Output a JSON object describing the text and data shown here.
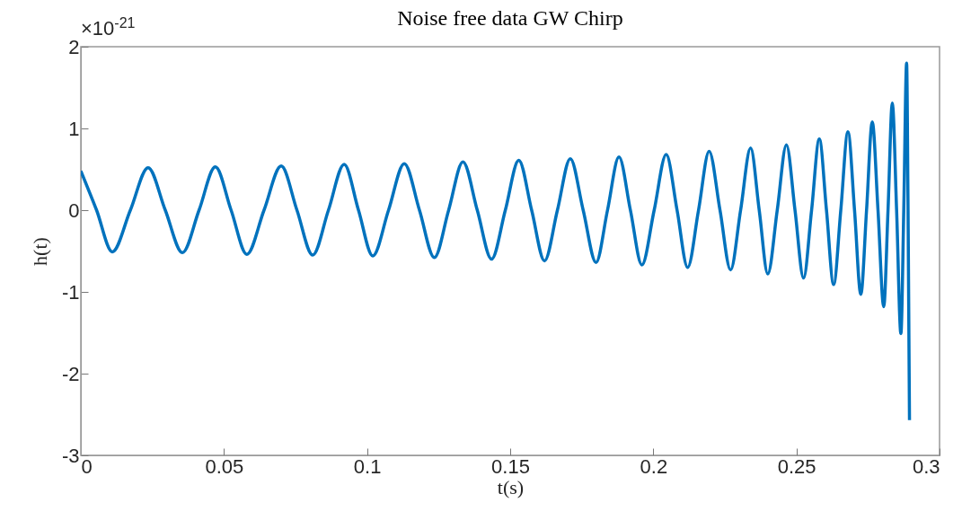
{
  "chart_data": {
    "type": "line",
    "title": "Noise free data GW Chirp",
    "xlabel": "t(s)",
    "ylabel": "h(t)",
    "annotations": [
      "×10$^{-21}$"
    ],
    "xlim": [
      0,
      0.3
    ],
    "xticks": [
      0,
      0.05,
      0.1,
      0.15,
      0.2,
      0.25,
      0.3
    ],
    "ylim": [
      -3,
      2
    ],
    "yticks": [
      -3,
      -2,
      -1,
      0,
      1,
      2
    ],
    "grid": false,
    "legend": false,
    "marker": "none",
    "line_style": "solid",
    "x": [
      0,
      0.0055,
      0.011,
      0.0173,
      0.0235,
      0.0295,
      0.0355,
      0.0413,
      0.047,
      0.0525,
      0.058,
      0.064,
      0.07,
      0.0755,
      0.081,
      0.0865,
      0.092,
      0.097,
      0.102,
      0.1075,
      0.113,
      0.1183,
      0.1235,
      0.1285,
      0.1335,
      0.1385,
      0.1435,
      0.1483,
      0.153,
      0.1575,
      0.162,
      0.1665,
      0.171,
      0.1755,
      0.18,
      0.184,
      0.188,
      0.192,
      0.196,
      0.2003,
      0.2045,
      0.2083,
      0.212,
      0.2158,
      0.2195,
      0.2233,
      0.227,
      0.2305,
      0.234,
      0.237,
      0.24,
      0.2433,
      0.2465,
      0.2495,
      0.2525,
      0.2553,
      0.258,
      0.2605,
      0.263,
      0.2655,
      0.268,
      0.2703,
      0.2725,
      0.2745,
      0.2765,
      0.2785,
      0.2805,
      0.282,
      0.2835,
      0.285,
      0.2865,
      0.2875,
      0.2885,
      0.289,
      0.2895
    ],
    "series": [
      {
        "color": "#0072bd",
        "values": [
          0.48,
          0,
          -0.51,
          0,
          0.52,
          0,
          -0.52,
          0,
          0.53,
          0,
          -0.54,
          0,
          0.54,
          0,
          -0.55,
          0,
          0.56,
          0,
          -0.56,
          0,
          0.57,
          0,
          -0.58,
          0,
          0.59,
          0,
          -0.6,
          0,
          0.61,
          0,
          -0.62,
          0,
          0.63,
          0,
          -0.64,
          0,
          0.65,
          0,
          -0.67,
          0,
          0.68,
          0,
          -0.7,
          0,
          0.72,
          0,
          -0.73,
          0,
          0.76,
          0,
          -0.78,
          0,
          0.8,
          0,
          -0.83,
          0,
          0.87,
          0,
          -0.91,
          0,
          0.96,
          0,
          -1.03,
          0,
          1.08,
          0,
          -1.18,
          0,
          1.31,
          0,
          -1.51,
          0,
          1.8,
          0,
          -2.57
        ]
      }
    ]
  }
}
